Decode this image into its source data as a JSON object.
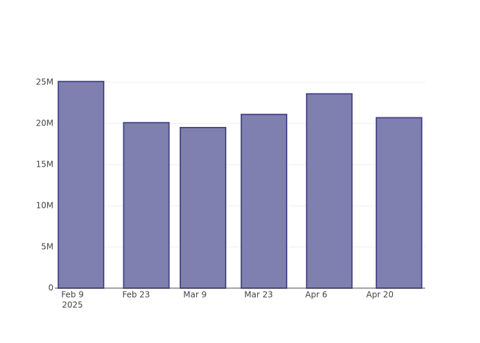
{
  "chart_data": {
    "type": "bar",
    "x": [
      "2025-02-11",
      "2025-02-26",
      "2025-03-11",
      "2025-03-25",
      "2025-04-09",
      "2025-04-25"
    ],
    "values": [
      25100000,
      20100000,
      19500000,
      21100000,
      23600000,
      20700000
    ],
    "color": "#8080b0",
    "edge_color": "#4a4a8a",
    "xlim": [
      "2025-02-05",
      "2025-05-01"
    ],
    "xticks": [
      {
        "value": "2025-02-09",
        "label": "Feb 9"
      },
      {
        "value": "2025-02-23",
        "label": "Feb 23"
      },
      {
        "value": "2025-03-09",
        "label": "Mar 9"
      },
      {
        "value": "2025-03-23",
        "label": "Mar 23"
      },
      {
        "value": "2025-04-06",
        "label": "Apr 6"
      },
      {
        "value": "2025-04-20",
        "label": "Apr 20"
      }
    ],
    "xtick_year": "2025",
    "ylim": [
      0,
      25250000
    ],
    "yticks": [
      0,
      {
        "value": 5000000,
        "label": "5M"
      },
      {
        "value": 10000000,
        "label": "10M"
      },
      {
        "value": 15000000,
        "label": "15M"
      },
      {
        "value": 20000000,
        "label": "20M"
      },
      {
        "value": 25000000,
        "label": "25M"
      }
    ],
    "grid": true
  }
}
